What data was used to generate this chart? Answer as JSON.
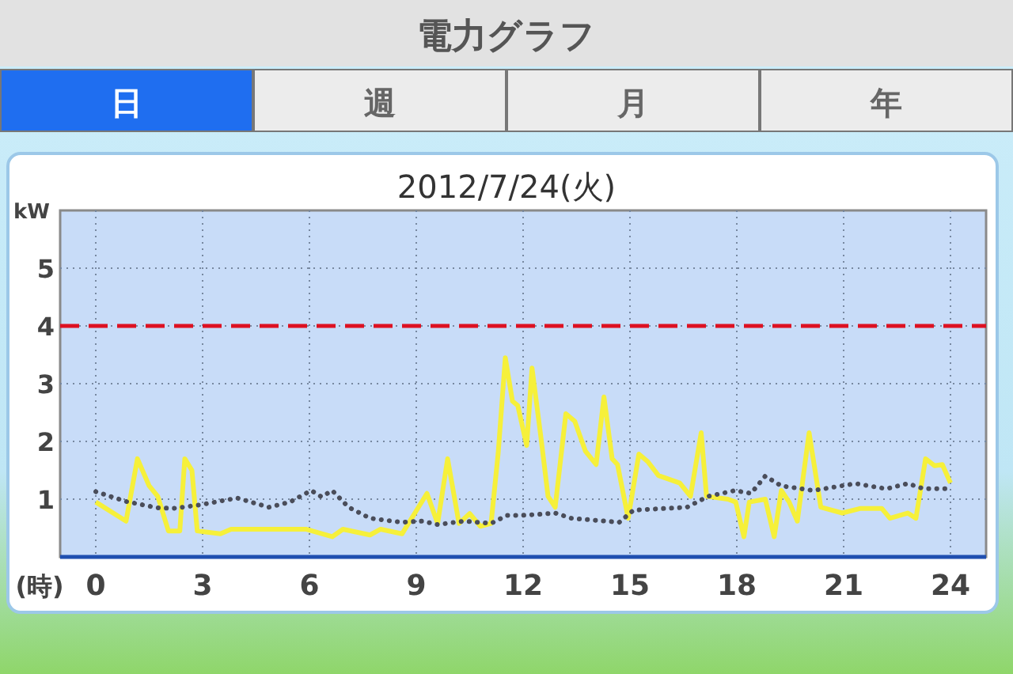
{
  "chart_data": {
    "type": "line",
    "title": "電力グラフ",
    "subtitle": "2012/7/24(火)",
    "annotations": [
      "日",
      "週",
      "月",
      "年"
    ],
    "xlabel": "(時)",
    "ylabel": "kW",
    "xlim": [
      -1,
      25
    ],
    "xticks": [
      0,
      3,
      6,
      9,
      12,
      15,
      18,
      21,
      24
    ],
    "ylim": [
      0,
      6
    ],
    "yticks": [
      1,
      2,
      3,
      4,
      5
    ],
    "grid": true,
    "ref_lines": [
      {
        "axis": "y",
        "value": 4,
        "color": "#dd1122",
        "line_style": "dashed"
      }
    ],
    "series": [
      {
        "color": "#f6f03a",
        "line_style": "solid",
        "x": [
          0,
          0.85,
          1.17,
          1.5,
          1.74,
          2.04,
          2.36,
          2.5,
          2.7,
          2.85,
          3.5,
          3.8,
          5.9,
          6.64,
          6.94,
          7.7,
          8.0,
          8.6,
          9.05,
          9.3,
          9.6,
          9.88,
          10.2,
          10.5,
          10.8,
          11.1,
          11.3,
          11.5,
          11.7,
          11.85,
          12.1,
          12.25,
          12.5,
          12.7,
          12.9,
          13.2,
          13.45,
          13.75,
          14.05,
          14.27,
          14.5,
          14.65,
          14.95,
          15.25,
          15.5,
          15.8,
          16.4,
          16.7,
          17.0,
          17.15,
          17.75,
          17.97,
          18.2,
          18.35,
          18.8,
          19.05,
          19.25,
          19.47,
          19.7,
          20.03,
          20.36,
          20.96,
          21.48,
          22.07,
          22.3,
          22.8,
          23.03,
          23.3,
          23.55,
          23.77,
          24.0
        ],
        "values": [
          0.95,
          0.62,
          1.7,
          1.23,
          1.05,
          0.45,
          0.45,
          1.7,
          1.5,
          0.45,
          0.4,
          0.48,
          0.48,
          0.35,
          0.48,
          0.38,
          0.48,
          0.4,
          0.85,
          1.1,
          0.58,
          1.7,
          0.58,
          0.75,
          0.53,
          0.58,
          1.8,
          3.45,
          2.7,
          2.62,
          1.93,
          3.27,
          2.07,
          1.05,
          0.86,
          2.48,
          2.35,
          1.83,
          1.6,
          2.77,
          1.7,
          1.6,
          0.67,
          1.78,
          1.65,
          1.41,
          1.28,
          1.05,
          2.15,
          1.05,
          1.0,
          0.95,
          0.35,
          0.95,
          1.0,
          0.35,
          1.15,
          0.95,
          0.62,
          2.15,
          0.86,
          0.76,
          0.84,
          0.84,
          0.67,
          0.76,
          0.67,
          1.7,
          1.58,
          1.6,
          1.28
        ]
      },
      {
        "color": "#4a4d5a",
        "line_style": "dotted",
        "x": [
          0,
          0.85,
          1.74,
          2.18,
          2.92,
          3.97,
          4.86,
          5.45,
          6.05,
          6.34,
          6.64,
          7.1,
          7.7,
          8.58,
          9.17,
          9.6,
          10.35,
          11.1,
          11.55,
          11.96,
          12.5,
          12.9,
          13.35,
          14.7,
          15.1,
          16.6,
          17.2,
          17.95,
          18.4,
          18.8,
          19.25,
          20.15,
          21.33,
          22.2,
          22.8,
          23.25,
          24
        ],
        "values": [
          1.13,
          0.96,
          0.85,
          0.84,
          0.9,
          1.02,
          0.86,
          0.95,
          1.15,
          1.04,
          1.15,
          0.86,
          0.67,
          0.6,
          0.62,
          0.56,
          0.62,
          0.58,
          0.72,
          0.72,
          0.74,
          0.76,
          0.67,
          0.6,
          0.81,
          0.86,
          1.05,
          1.15,
          1.1,
          1.4,
          1.23,
          1.15,
          1.27,
          1.18,
          1.27,
          1.18,
          1.18
        ]
      }
    ]
  }
}
